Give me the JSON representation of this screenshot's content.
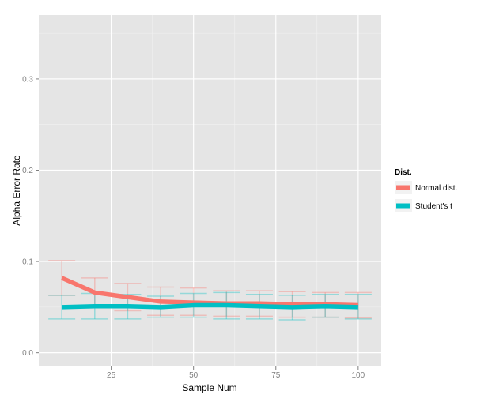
{
  "chart_data": {
    "type": "line",
    "xlabel": "Sample Num",
    "ylabel": "Alpha Error Rate",
    "xlim": [
      3,
      107
    ],
    "ylim": [
      -0.015,
      0.37
    ],
    "x_ticks": [
      25,
      50,
      75,
      100
    ],
    "x_tick_labels": [
      "25",
      "50",
      "75",
      "100"
    ],
    "y_ticks": [
      0.0,
      0.1,
      0.2,
      0.3
    ],
    "y_tick_labels": [
      "0.0",
      "0.1",
      "0.2",
      "0.3"
    ],
    "grid": true,
    "panel_background": "#e5e5e5",
    "legend": {
      "title": "Dist.",
      "position": "right",
      "entries": [
        "Normal dist.",
        "Student's t"
      ]
    },
    "x": [
      10,
      20,
      30,
      40,
      50,
      60,
      70,
      80,
      90,
      100
    ],
    "series": [
      {
        "name": "Normal dist.",
        "color": "#f8766d",
        "values": [
          0.082,
          0.066,
          0.061,
          0.056,
          0.055,
          0.054,
          0.054,
          0.053,
          0.053,
          0.052
        ],
        "error_low": [
          0.063,
          0.05,
          0.046,
          0.041,
          0.041,
          0.04,
          0.04,
          0.039,
          0.039,
          0.038
        ],
        "error_high": [
          0.101,
          0.082,
          0.076,
          0.072,
          0.071,
          0.068,
          0.068,
          0.067,
          0.066,
          0.066
        ]
      },
      {
        "name": "Student's t",
        "color": "#00bfc4",
        "values": [
          0.05,
          0.051,
          0.051,
          0.05,
          0.052,
          0.052,
          0.051,
          0.05,
          0.051,
          0.05
        ],
        "error_low": [
          0.037,
          0.037,
          0.037,
          0.039,
          0.039,
          0.037,
          0.037,
          0.036,
          0.039,
          0.037
        ],
        "error_high": [
          0.063,
          0.065,
          0.064,
          0.062,
          0.065,
          0.066,
          0.064,
          0.063,
          0.064,
          0.064
        ]
      }
    ]
  }
}
